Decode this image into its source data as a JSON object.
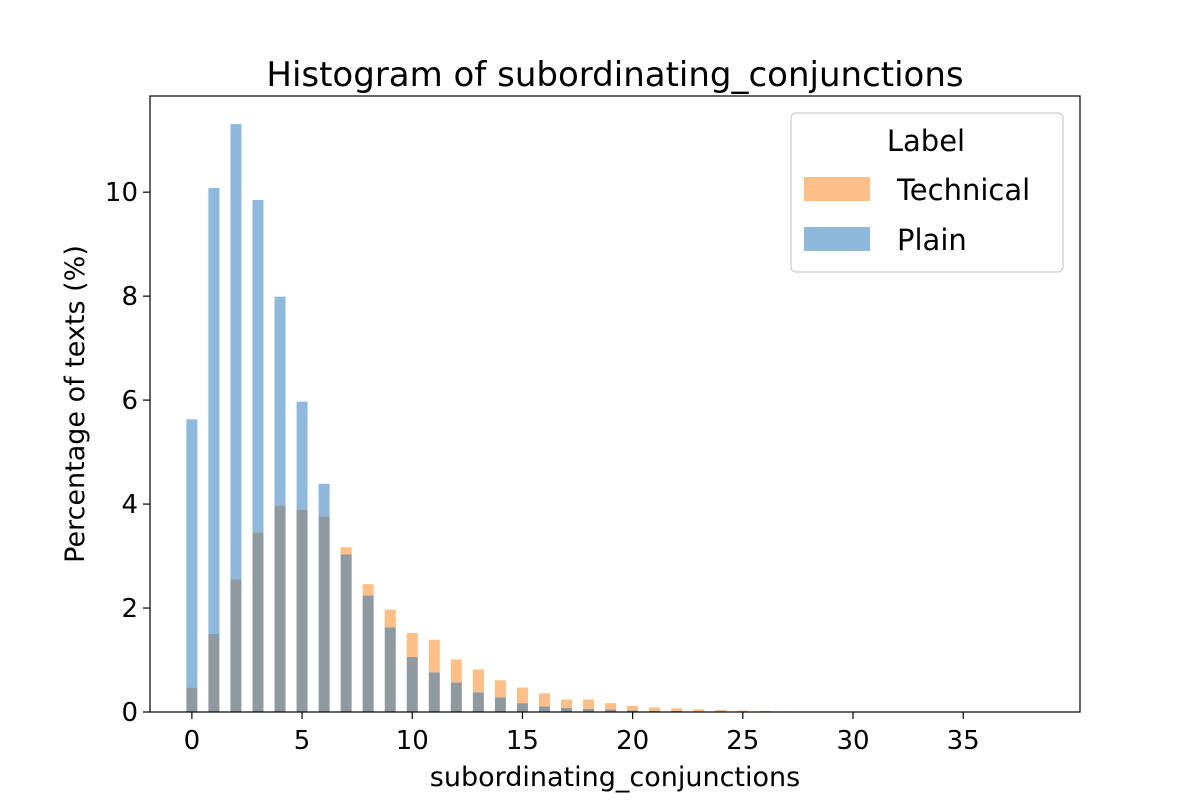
{
  "chart_data": {
    "type": "bar",
    "title": "Histogram of subordinating_conjunctions",
    "xlabel": "subordinating_conjunctions",
    "ylabel": "Percentage of texts (%)",
    "xlim": [
      -1.9,
      40.3
    ],
    "ylim": [
      0,
      11.85
    ],
    "xticks": [
      0,
      5,
      10,
      15,
      20,
      25,
      30,
      35
    ],
    "yticks": [
      0,
      2,
      4,
      6,
      8,
      10
    ],
    "grid": false,
    "legend": {
      "title": "Label",
      "placement": "top-right"
    },
    "bar_width": 0.5,
    "x": [
      0,
      1,
      2,
      3,
      4,
      5,
      6,
      7,
      8,
      9,
      10,
      11,
      12,
      13,
      14,
      15,
      16,
      17,
      18,
      19,
      20,
      21,
      22,
      23,
      24,
      25,
      26,
      27,
      28,
      29,
      30,
      31,
      32,
      33,
      34,
      35,
      36,
      37,
      38
    ],
    "series": [
      {
        "name": "Technical",
        "color": "#ffbf86",
        "values": [
          0.47,
          1.5,
          2.55,
          3.46,
          3.97,
          3.9,
          3.76,
          3.17,
          2.46,
          1.97,
          1.52,
          1.39,
          1.01,
          0.82,
          0.61,
          0.47,
          0.36,
          0.24,
          0.24,
          0.17,
          0.12,
          0.09,
          0.07,
          0.05,
          0.04,
          0.03,
          0.02,
          0.01,
          0.01,
          0.01,
          0.005,
          0.005,
          0.003,
          0.003,
          0.002,
          0.002,
          0.001,
          0.001,
          0.001
        ]
      },
      {
        "name": "Plain",
        "color": "#8fb9dc",
        "values": [
          5.63,
          10.08,
          11.31,
          9.85,
          7.99,
          5.97,
          4.39,
          3.03,
          2.24,
          1.63,
          1.06,
          0.76,
          0.57,
          0.38,
          0.28,
          0.17,
          0.11,
          0.08,
          0.06,
          0.05,
          0.03,
          0.02,
          0.02,
          0.01,
          0.01,
          0.01,
          0.005,
          0.005,
          0.003,
          0.002,
          0.001,
          0.001,
          0.001,
          0.001,
          0.0,
          0.0,
          0.0,
          0.0,
          0.0
        ]
      }
    ],
    "overlap_color": "#8e9a9f"
  }
}
